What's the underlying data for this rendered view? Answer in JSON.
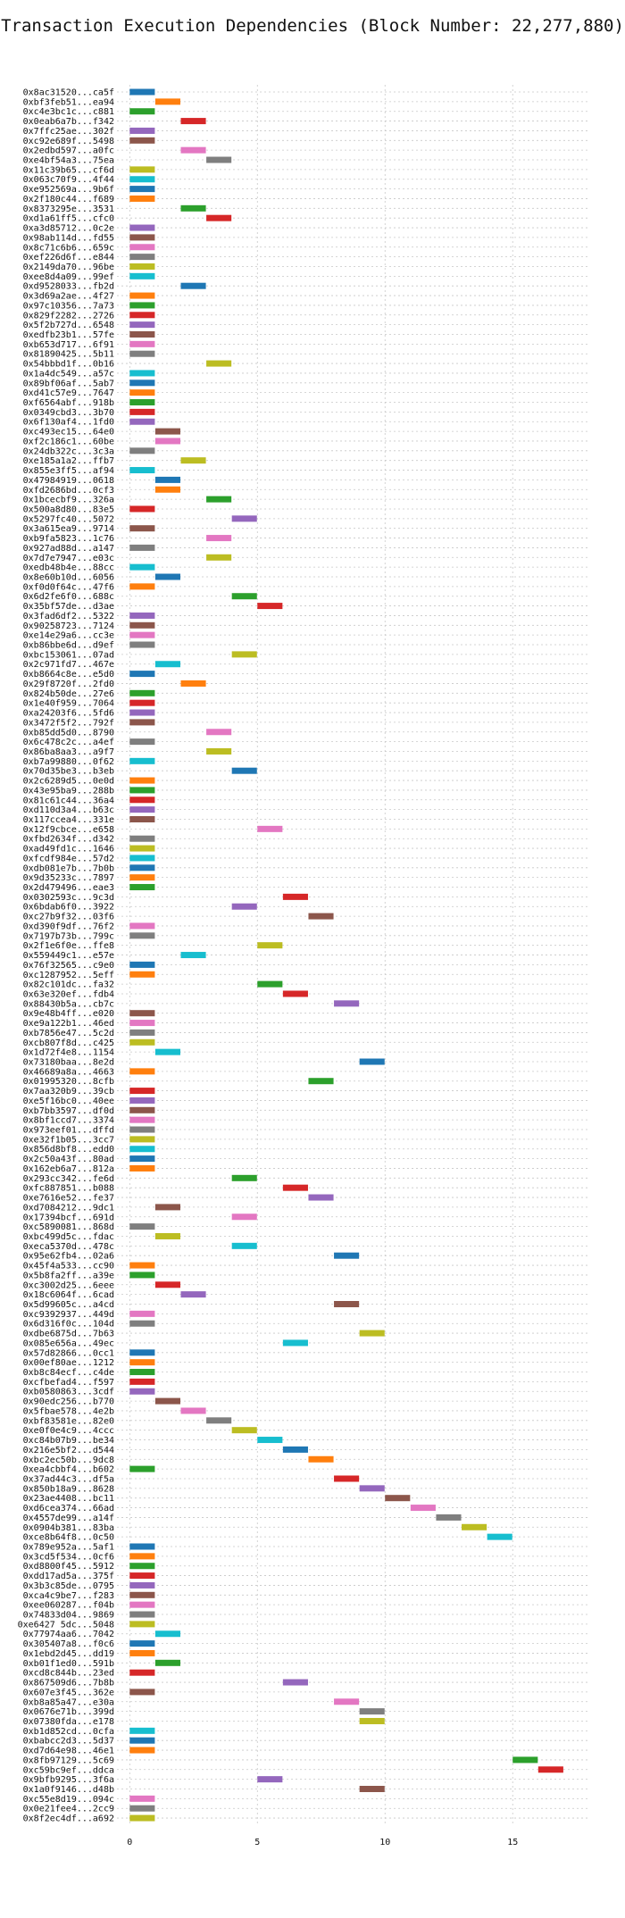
{
  "chart_data": {
    "type": "gantt",
    "title": "Transaction Execution Dependencies (Block Number: 22,277,880)",
    "xlabel": "",
    "ylabel": "",
    "xlim": [
      -0.5,
      18
    ],
    "xticks": [
      0,
      5,
      10,
      15
    ],
    "grid": true,
    "palette": [
      "#1f77b4",
      "#ff7f0e",
      "#2ca02c",
      "#d62728",
      "#9467bd",
      "#8c564b",
      "#e377c2",
      "#7f7f7f",
      "#bcbd22",
      "#17becf"
    ],
    "bars": [
      {
        "label": "0x8ac31520...ca5f",
        "start": 0,
        "end": 1
      },
      {
        "label": "0xbf3feb51...ea94",
        "start": 1,
        "end": 2
      },
      {
        "label": "0xc4e3bc1c...c881",
        "start": 0,
        "end": 1
      },
      {
        "label": "0x0eab6a7b...f342",
        "start": 2,
        "end": 3
      },
      {
        "label": "0x7ffc25ae...302f",
        "start": 0,
        "end": 1
      },
      {
        "label": "0xc92e689f...5498",
        "start": 0,
        "end": 1
      },
      {
        "label": "0x2edbd597...a0fc",
        "start": 2,
        "end": 3
      },
      {
        "label": "0xe4bf54a3...75ea",
        "start": 3,
        "end": 4
      },
      {
        "label": "0x11c39b65...cf6d",
        "start": 0,
        "end": 1
      },
      {
        "label": "0x063c70f9...4f44",
        "start": 0,
        "end": 1
      },
      {
        "label": "0xe952569a...9b6f",
        "start": 0,
        "end": 1
      },
      {
        "label": "0x2f180c44...f689",
        "start": 0,
        "end": 1
      },
      {
        "label": "0x8373295e...3531",
        "start": 2,
        "end": 3
      },
      {
        "label": "0xd1a61ff5...cfc0",
        "start": 3,
        "end": 4
      },
      {
        "label": "0xa3d85712...0c2e",
        "start": 0,
        "end": 1
      },
      {
        "label": "0x98ab114d...fd55",
        "start": 0,
        "end": 1
      },
      {
        "label": "0x8c71c6b6...659c",
        "start": 0,
        "end": 1
      },
      {
        "label": "0xef226d6f...e844",
        "start": 0,
        "end": 1
      },
      {
        "label": "0x2149da70...96be",
        "start": 0,
        "end": 1
      },
      {
        "label": "0xee8d4a09...99ef",
        "start": 0,
        "end": 1
      },
      {
        "label": "0xd9528033...fb2d",
        "start": 2,
        "end": 3
      },
      {
        "label": "0x3d69a2ae...4f27",
        "start": 0,
        "end": 1
      },
      {
        "label": "0x97c10356...7a73",
        "start": 0,
        "end": 1
      },
      {
        "label": "0x829f2282...2726",
        "start": 0,
        "end": 1
      },
      {
        "label": "0x5f2b727d...6548",
        "start": 0,
        "end": 1
      },
      {
        "label": "0xedfb23b1...57fe",
        "start": 0,
        "end": 1
      },
      {
        "label": "0xb653d717...6f91",
        "start": 0,
        "end": 1
      },
      {
        "label": "0x81890425...5b11",
        "start": 0,
        "end": 1
      },
      {
        "label": "0x54bbbd1f...0b16",
        "start": 3,
        "end": 4
      },
      {
        "label": "0x1a4dc549...a57c",
        "start": 0,
        "end": 1
      },
      {
        "label": "0x89bf06af...5ab7",
        "start": 0,
        "end": 1
      },
      {
        "label": "0xd41c57e9...7647",
        "start": 0,
        "end": 1
      },
      {
        "label": "0xf6564abf...918b",
        "start": 0,
        "end": 1
      },
      {
        "label": "0x0349cbd3...3b70",
        "start": 0,
        "end": 1
      },
      {
        "label": "0x6f130af4...1fd0",
        "start": 0,
        "end": 1
      },
      {
        "label": "0xc493ec15...64e0",
        "start": 1,
        "end": 2
      },
      {
        "label": "0xf2c186c1...60be",
        "start": 1,
        "end": 2
      },
      {
        "label": "0x24db322c...3c3a",
        "start": 0,
        "end": 1
      },
      {
        "label": "0xe185a1a2...ffb7",
        "start": 2,
        "end": 3
      },
      {
        "label": "0x855e3ff5...af94",
        "start": 0,
        "end": 1
      },
      {
        "label": "0x47984919...0618",
        "start": 1,
        "end": 2
      },
      {
        "label": "0xfd2686bd...0cf3",
        "start": 1,
        "end": 2
      },
      {
        "label": "0x1bcecbf9...326a",
        "start": 3,
        "end": 4
      },
      {
        "label": "0x500a8d80...83e5",
        "start": 0,
        "end": 1
      },
      {
        "label": "0x5297fc40...5072",
        "start": 4,
        "end": 5
      },
      {
        "label": "0x3a615ea9...9714",
        "start": 0,
        "end": 1
      },
      {
        "label": "0xb9fa5823...1c76",
        "start": 3,
        "end": 4
      },
      {
        "label": "0x927ad88d...a147",
        "start": 0,
        "end": 1
      },
      {
        "label": "0x7d7e7947...e03c",
        "start": 3,
        "end": 4
      },
      {
        "label": "0xedb48b4e...88cc",
        "start": 0,
        "end": 1
      },
      {
        "label": "0x8e60b10d...6056",
        "start": 1,
        "end": 2
      },
      {
        "label": "0xf0d0f64c...47f6",
        "start": 0,
        "end": 1
      },
      {
        "label": "0x6d2fe6f0...688c",
        "start": 4,
        "end": 5
      },
      {
        "label": "0x35bf57de...d3ae",
        "start": 5,
        "end": 6
      },
      {
        "label": "0x3fad6df2...5322",
        "start": 0,
        "end": 1
      },
      {
        "label": "0x90258723...7124",
        "start": 0,
        "end": 1
      },
      {
        "label": "0xe14e29a6...cc3e",
        "start": 0,
        "end": 1
      },
      {
        "label": "0xb86bbe6d...d9ef",
        "start": 0,
        "end": 1
      },
      {
        "label": "0xbc153061...07ad",
        "start": 4,
        "end": 5
      },
      {
        "label": "0x2c971fd7...467e",
        "start": 1,
        "end": 2
      },
      {
        "label": "0xb8664c8e...e5d0",
        "start": 0,
        "end": 1
      },
      {
        "label": "0x29f8720f...2fd0",
        "start": 2,
        "end": 3
      },
      {
        "label": "0x824b50de...27e6",
        "start": 0,
        "end": 1
      },
      {
        "label": "0x1e40f959...7064",
        "start": 0,
        "end": 1
      },
      {
        "label": "0xa24203f6...5fd6",
        "start": 0,
        "end": 1
      },
      {
        "label": "0x3472f5f2...792f",
        "start": 0,
        "end": 1
      },
      {
        "label": "0xb85dd5d0...8790",
        "start": 3,
        "end": 4
      },
      {
        "label": "0x6c478c2c...a4ef",
        "start": 0,
        "end": 1
      },
      {
        "label": "0x86ba8aa3...a9f7",
        "start": 3,
        "end": 4
      },
      {
        "label": "0xb7a99880...0f62",
        "start": 0,
        "end": 1
      },
      {
        "label": "0x70d35be3...b3eb",
        "start": 4,
        "end": 5
      },
      {
        "label": "0x2c6289d5...0e0d",
        "start": 0,
        "end": 1
      },
      {
        "label": "0x43e95ba9...288b",
        "start": 0,
        "end": 1
      },
      {
        "label": "0x81c61c44...36a4",
        "start": 0,
        "end": 1
      },
      {
        "label": "0xd110d3a4...b63c",
        "start": 0,
        "end": 1
      },
      {
        "label": "0x117ccea4...331e",
        "start": 0,
        "end": 1
      },
      {
        "label": "0x12f9cbce...e658",
        "start": 5,
        "end": 6
      },
      {
        "label": "0xfbd2634f...d342",
        "start": 0,
        "end": 1
      },
      {
        "label": "0xad49fd1c...1646",
        "start": 0,
        "end": 1
      },
      {
        "label": "0xfcdf984e...57d2",
        "start": 0,
        "end": 1
      },
      {
        "label": "0xdb081e7b...7b0b",
        "start": 0,
        "end": 1
      },
      {
        "label": "0x9d35233c...7897",
        "start": 0,
        "end": 1
      },
      {
        "label": "0x2d479496...eae3",
        "start": 0,
        "end": 1
      },
      {
        "label": "0x0302593c...9c3d",
        "start": 6,
        "end": 7
      },
      {
        "label": "0x6bdab6f0...3922",
        "start": 4,
        "end": 5
      },
      {
        "label": "0xc27b9f32...03f6",
        "start": 7,
        "end": 8
      },
      {
        "label": "0xd390f9df...76f2",
        "start": 0,
        "end": 1
      },
      {
        "label": "0x7197b73b...799c",
        "start": 0,
        "end": 1
      },
      {
        "label": "0x2f1e6f0e...ffe8",
        "start": 5,
        "end": 6
      },
      {
        "label": "0x559449c1...e57e",
        "start": 2,
        "end": 3
      },
      {
        "label": "0x76f32565...c9e0",
        "start": 0,
        "end": 1
      },
      {
        "label": "0xc1287952...5eff",
        "start": 0,
        "end": 1
      },
      {
        "label": "0x82c101dc...fa32",
        "start": 5,
        "end": 6
      },
      {
        "label": "0x63e320ef...fdb4",
        "start": 6,
        "end": 7
      },
      {
        "label": "0x88430b5a...cb7c",
        "start": 8,
        "end": 9
      },
      {
        "label": "0x9e48b4ff...e020",
        "start": 0,
        "end": 1
      },
      {
        "label": "0xe9a122b1...46ed",
        "start": 0,
        "end": 1
      },
      {
        "label": "0xb7856e47...5c2d",
        "start": 0,
        "end": 1
      },
      {
        "label": "0xcb807f8d...c425",
        "start": 0,
        "end": 1
      },
      {
        "label": "0x1d72f4e8...1154",
        "start": 1,
        "end": 2
      },
      {
        "label": "0x73180baa...8e2d",
        "start": 9,
        "end": 10
      },
      {
        "label": "0x46689a8a...4663",
        "start": 0,
        "end": 1
      },
      {
        "label": "0x01995320...8cfb",
        "start": 7,
        "end": 8
      },
      {
        "label": "0x7aa320b9...39cb",
        "start": 0,
        "end": 1
      },
      {
        "label": "0xe5f16bc0...40ee",
        "start": 0,
        "end": 1
      },
      {
        "label": "0xb7bb3597...df0d",
        "start": 0,
        "end": 1
      },
      {
        "label": "0x8bf1ccd7...3374",
        "start": 0,
        "end": 1
      },
      {
        "label": "0x973eef01...dffd",
        "start": 0,
        "end": 1
      },
      {
        "label": "0xe32f1b05...3cc7",
        "start": 0,
        "end": 1
      },
      {
        "label": "0x856d8bf8...edd0",
        "start": 0,
        "end": 1
      },
      {
        "label": "0x2c50a43f...80ad",
        "start": 0,
        "end": 1
      },
      {
        "label": "0x162eb6a7...812a",
        "start": 0,
        "end": 1
      },
      {
        "label": "0x293cc342...fe6d",
        "start": 4,
        "end": 5
      },
      {
        "label": "0xfc887851...b088",
        "start": 6,
        "end": 7
      },
      {
        "label": "0xe7616e52...fe37",
        "start": 7,
        "end": 8
      },
      {
        "label": "0xd7084212...9dc1",
        "start": 1,
        "end": 2
      },
      {
        "label": "0x17394bcf...691d",
        "start": 4,
        "end": 5
      },
      {
        "label": "0xc5890081...868d",
        "start": 0,
        "end": 1
      },
      {
        "label": "0xbc499d5c...fdac",
        "start": 1,
        "end": 2
      },
      {
        "label": "0xeca5370d...478c",
        "start": 4,
        "end": 5
      },
      {
        "label": "0x95e62fb4...02a6",
        "start": 8,
        "end": 9
      },
      {
        "label": "0x45f4a533...cc90",
        "start": 0,
        "end": 1
      },
      {
        "label": "0x5b8fa2ff...a39e",
        "start": 0,
        "end": 1
      },
      {
        "label": "0xc3002d25...6eee",
        "start": 1,
        "end": 2
      },
      {
        "label": "0x18c6064f...6cad",
        "start": 2,
        "end": 3
      },
      {
        "label": "0x5d99605c...a4cd",
        "start": 8,
        "end": 9
      },
      {
        "label": "0xc9392937...449d",
        "start": 0,
        "end": 1
      },
      {
        "label": "0x6d316f0c...104d",
        "start": 0,
        "end": 1
      },
      {
        "label": "0xdbe6875d...7b63",
        "start": 9,
        "end": 10
      },
      {
        "label": "0x085e656a...49ec",
        "start": 6,
        "end": 7
      },
      {
        "label": "0x57d82866...0cc1",
        "start": 0,
        "end": 1
      },
      {
        "label": "0x00ef80ae...1212",
        "start": 0,
        "end": 1
      },
      {
        "label": "0xb8c84ecf...c4de",
        "start": 0,
        "end": 1
      },
      {
        "label": "0xcfbefad4...f597",
        "start": 0,
        "end": 1
      },
      {
        "label": "0xb0580863...3cdf",
        "start": 0,
        "end": 1
      },
      {
        "label": "0x90edc256...b770",
        "start": 1,
        "end": 2
      },
      {
        "label": "0x5fbae578...4e2b",
        "start": 2,
        "end": 3
      },
      {
        "label": "0xbf83581e...82e0",
        "start": 3,
        "end": 4
      },
      {
        "label": "0xe0f0e4c9...4ccc",
        "start": 4,
        "end": 5
      },
      {
        "label": "0xc84b07b9...be34",
        "start": 5,
        "end": 6
      },
      {
        "label": "0x216e5bf2...d544",
        "start": 6,
        "end": 7
      },
      {
        "label": "0xbc2ec50b...9dc8",
        "start": 7,
        "end": 8
      },
      {
        "label": "0xea4cbbf4...b602",
        "start": 0,
        "end": 1
      },
      {
        "label": "0x37ad44c3...df5a",
        "start": 8,
        "end": 9
      },
      {
        "label": "0x850b18a9...8628",
        "start": 9,
        "end": 10
      },
      {
        "label": "0x23ae4408...bc11",
        "start": 10,
        "end": 11
      },
      {
        "label": "0xd6cea374...66ad",
        "start": 11,
        "end": 12
      },
      {
        "label": "0x4557de99...a14f",
        "start": 12,
        "end": 13
      },
      {
        "label": "0x0904b381...83ba",
        "start": 13,
        "end": 14
      },
      {
        "label": "0xce8b64f8...0c50",
        "start": 14,
        "end": 15
      },
      {
        "label": "0x789e952a...5af1",
        "start": 0,
        "end": 1
      },
      {
        "label": "0x3cd5f534...0cf6",
        "start": 0,
        "end": 1
      },
      {
        "label": "0xd8800f45...5912",
        "start": 0,
        "end": 1
      },
      {
        "label": "0xdd17ad5a...375f",
        "start": 0,
        "end": 1
      },
      {
        "label": "0x3b3c85de...0795",
        "start": 0,
        "end": 1
      },
      {
        "label": "0xca4c9be7...f283",
        "start": 0,
        "end": 1
      },
      {
        "label": "0xee060287...f04b",
        "start": 0,
        "end": 1
      },
      {
        "label": "0x74833d04...9869",
        "start": 0,
        "end": 1
      },
      {
        "label": "0xe6427 5dc...5048",
        "start": 0,
        "end": 1
      },
      {
        "label": "0x77974aa6...7042",
        "start": 1,
        "end": 2
      },
      {
        "label": "0x305407a8...f0c6",
        "start": 0,
        "end": 1
      },
      {
        "label": "0x1ebd2d45...dd19",
        "start": 0,
        "end": 1
      },
      {
        "label": "0xb01f1ed0...591b",
        "start": 1,
        "end": 2
      },
      {
        "label": "0xcd8c844b...23ed",
        "start": 0,
        "end": 1
      },
      {
        "label": "0x867509d6...7b8b",
        "start": 6,
        "end": 7
      },
      {
        "label": "0x607e3f45...362e",
        "start": 0,
        "end": 1
      },
      {
        "label": "0xb8a85a47...e30a",
        "start": 8,
        "end": 9
      },
      {
        "label": "0x0676e71b...399d",
        "start": 9,
        "end": 10
      },
      {
        "label": "0x07380fda...e178",
        "start": 9,
        "end": 10
      },
      {
        "label": "0xb1d852cd...0cfa",
        "start": 0,
        "end": 1
      },
      {
        "label": "0xbabcc2d3...5d37",
        "start": 0,
        "end": 1
      },
      {
        "label": "0xd7d64e98...46e1",
        "start": 0,
        "end": 1
      },
      {
        "label": "0x8fb97129...5c69",
        "start": 15,
        "end": 16
      },
      {
        "label": "0xc59bc9ef...ddca",
        "start": 16,
        "end": 17
      },
      {
        "label": "0x9bfb9295...3f6a",
        "start": 5,
        "end": 6
      },
      {
        "label": "0x1a0f9146...d48b",
        "start": 9,
        "end": 10
      },
      {
        "label": "0xc55e8d19...094c",
        "start": 0,
        "end": 1
      },
      {
        "label": "0x0e21fee4...2cc9",
        "start": 0,
        "end": 1
      },
      {
        "label": "0x8f2ec4df...a692",
        "start": 0,
        "end": 1
      }
    ]
  }
}
